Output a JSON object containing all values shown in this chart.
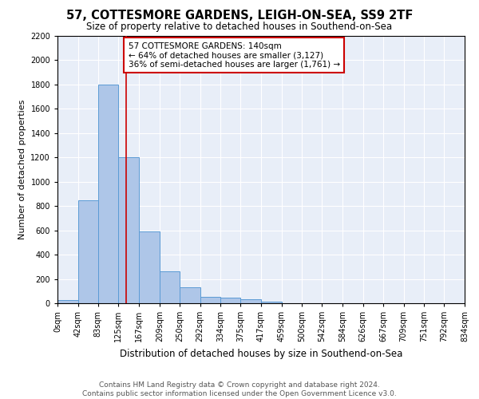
{
  "title": "57, COTTESMORE GARDENS, LEIGH-ON-SEA, SS9 2TF",
  "subtitle": "Size of property relative to detached houses in Southend-on-Sea",
  "xlabel": "Distribution of detached houses by size in Southend-on-Sea",
  "ylabel": "Number of detached properties",
  "bar_heights": [
    25,
    850,
    1800,
    1200,
    590,
    260,
    130,
    50,
    45,
    30,
    15,
    0,
    0,
    0,
    0,
    0,
    0,
    0,
    0,
    0
  ],
  "bin_edges": [
    0,
    42,
    83,
    125,
    167,
    209,
    250,
    292,
    334,
    375,
    417,
    459,
    500,
    542,
    584,
    626,
    667,
    709,
    751,
    792,
    834
  ],
  "bar_color": "#aec6e8",
  "bar_edge_color": "#5b9bd5",
  "property_size": 140,
  "annotation_text": "57 COTTESMORE GARDENS: 140sqm\n← 64% of detached houses are smaller (3,127)\n36% of semi-detached houses are larger (1,761) →",
  "annotation_box_color": "#ffffff",
  "annotation_box_edge_color": "#cc0000",
  "vline_color": "#cc0000",
  "ylim": [
    0,
    2200
  ],
  "yticks": [
    0,
    200,
    400,
    600,
    800,
    1000,
    1200,
    1400,
    1600,
    1800,
    2000,
    2200
  ],
  "tick_labels": [
    "0sqm",
    "42sqm",
    "83sqm",
    "125sqm",
    "167sqm",
    "209sqm",
    "250sqm",
    "292sqm",
    "334sqm",
    "375sqm",
    "417sqm",
    "459sqm",
    "500sqm",
    "542sqm",
    "584sqm",
    "626sqm",
    "667sqm",
    "709sqm",
    "751sqm",
    "792sqm",
    "834sqm"
  ],
  "plot_bg_color": "#e8eef8",
  "footer_line1": "Contains HM Land Registry data © Crown copyright and database right 2024.",
  "footer_line2": "Contains public sector information licensed under the Open Government Licence v3.0.",
  "title_fontsize": 10.5,
  "subtitle_fontsize": 8.5,
  "xlabel_fontsize": 8.5,
  "ylabel_fontsize": 8,
  "tick_fontsize": 7,
  "annotation_fontsize": 7.5,
  "footer_fontsize": 6.5
}
